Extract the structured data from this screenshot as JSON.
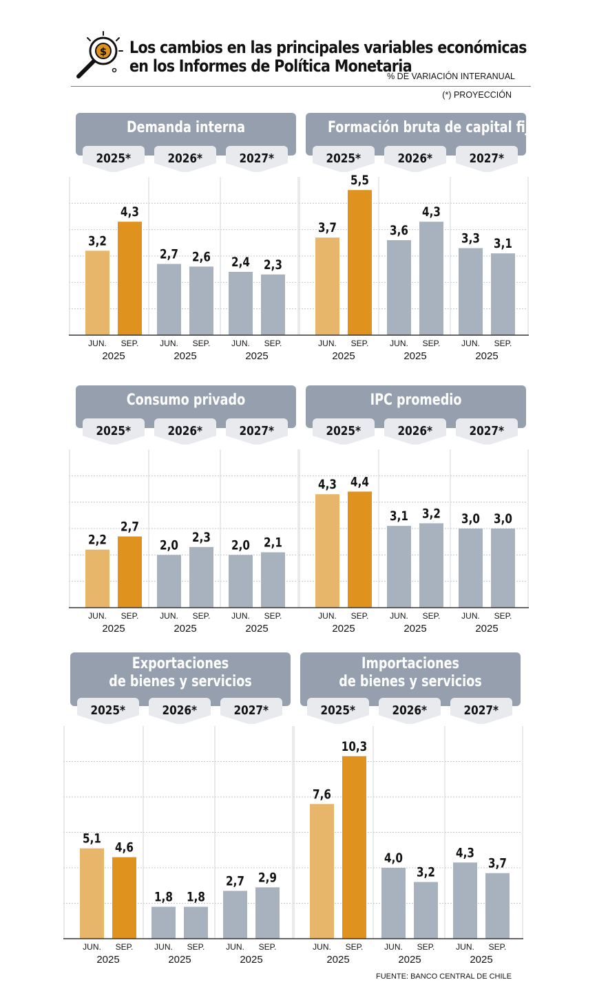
{
  "header": {
    "title_line1": "Los cambios en las principales variables económicas",
    "title_line2": "en los Informes de Política Monetaria",
    "subtitle": "% DE VARIACIÓN INTERANUAL",
    "note": "(*) PROYECCIÓN",
    "icon": "magnifier-dollar-icon"
  },
  "source": "FUENTE: BANCO CENTRAL DE CHILE",
  "colors": {
    "banner": "#959fae",
    "tab": "#e9eaee",
    "jun_2025": "#e8b66a",
    "sep_2025": "#e0921f",
    "other": "#a8b2bf"
  },
  "chart_data": [
    {
      "type": "bar",
      "title": "Demanda interna",
      "groups": [
        "2025*",
        "2026*",
        "2027*"
      ],
      "bar_labels": [
        "JUN.",
        "SEP."
      ],
      "year_label": "2025",
      "values": [
        [
          3.2,
          4.3
        ],
        [
          2.7,
          2.6
        ],
        [
          2.4,
          2.3
        ]
      ],
      "labels": [
        [
          "3,2",
          "4,3"
        ],
        [
          "2,7",
          "2,6"
        ],
        [
          "2,4",
          "2,3"
        ]
      ],
      "ylim": [
        0,
        6
      ],
      "grid": true
    },
    {
      "type": "bar",
      "title": "Formación bruta de capital fijo",
      "groups": [
        "2025*",
        "2026*",
        "2027*"
      ],
      "bar_labels": [
        "JUN.",
        "SEP."
      ],
      "year_label": "2025",
      "values": [
        [
          3.7,
          5.5
        ],
        [
          3.6,
          4.3
        ],
        [
          3.3,
          3.1
        ]
      ],
      "labels": [
        [
          "3,7",
          "5,5"
        ],
        [
          "3,6",
          "4,3"
        ],
        [
          "3,3",
          "3,1"
        ]
      ],
      "ylim": [
        0,
        6
      ],
      "grid": true
    },
    {
      "type": "bar",
      "title": "Consumo privado",
      "groups": [
        "2025*",
        "2026*",
        "2027*"
      ],
      "bar_labels": [
        "JUN.",
        "SEP."
      ],
      "year_label": "2025",
      "values": [
        [
          2.2,
          2.7
        ],
        [
          2.0,
          2.3
        ],
        [
          2.0,
          2.1
        ]
      ],
      "labels": [
        [
          "2,2",
          "2,7"
        ],
        [
          "2,0",
          "2,3"
        ],
        [
          "2,0",
          "2,1"
        ]
      ],
      "ylim": [
        0,
        6
      ],
      "grid": true
    },
    {
      "type": "bar",
      "title": "IPC promedio",
      "groups": [
        "2025*",
        "2026*",
        "2027*"
      ],
      "bar_labels": [
        "JUN.",
        "SEP."
      ],
      "year_label": "2025",
      "values": [
        [
          4.3,
          4.4
        ],
        [
          3.1,
          3.2
        ],
        [
          3.0,
          3.0
        ]
      ],
      "labels": [
        [
          "4,3",
          "4,4"
        ],
        [
          "3,1",
          "3,2"
        ],
        [
          "3,0",
          "3,0"
        ]
      ],
      "ylim": [
        0,
        6
      ],
      "grid": true
    },
    {
      "type": "bar",
      "title": "Exportaciones de bienes y servicios",
      "title_lines": [
        "Exportaciones",
        "de bienes y servicios"
      ],
      "groups": [
        "2025*",
        "2026*",
        "2027*"
      ],
      "bar_labels": [
        "JUN.",
        "SEP."
      ],
      "year_label": "2025",
      "values": [
        [
          5.1,
          4.6
        ],
        [
          1.8,
          1.8
        ],
        [
          2.7,
          2.9
        ]
      ],
      "labels": [
        [
          "5,1",
          "4,6"
        ],
        [
          "1,8",
          "1,8"
        ],
        [
          "2,7",
          "2,9"
        ]
      ],
      "ylim": [
        0,
        12
      ],
      "grid": true
    },
    {
      "type": "bar",
      "title": "Importaciones de bienes y servicios",
      "title_lines": [
        "Importaciones",
        "de bienes y servicios"
      ],
      "groups": [
        "2025*",
        "2026*",
        "2027*"
      ],
      "bar_labels": [
        "JUN.",
        "SEP."
      ],
      "year_label": "2025",
      "values": [
        [
          7.6,
          10.3
        ],
        [
          4.0,
          3.2
        ],
        [
          4.3,
          3.7
        ]
      ],
      "labels": [
        [
          "7,6",
          "10,3"
        ],
        [
          "4,0",
          "3,2"
        ],
        [
          "4,3",
          "3,7"
        ]
      ],
      "ylim": [
        0,
        12
      ],
      "grid": true
    }
  ]
}
